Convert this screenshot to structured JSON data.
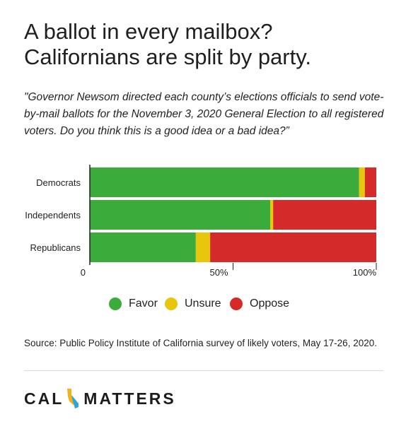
{
  "title": {
    "line1": "A ballot in every mailbox?",
    "line2": "Californians are split by party."
  },
  "question": "\"Governor Newsom directed each county’s elections officials to send vote-by-mail ballots for the November 3, 2020 General Election to all registered voters. Do you think this is a good idea or a bad idea?”",
  "chart_data": {
    "type": "bar",
    "orientation": "horizontal",
    "stacked": true,
    "categories": [
      "Democrats",
      "Independents",
      "Republicans"
    ],
    "series": [
      {
        "name": "Favor",
        "color": "#3bab3b",
        "values": [
          94,
          63,
          37
        ]
      },
      {
        "name": "Unsure",
        "color": "#e8c60c",
        "values": [
          2,
          1,
          5
        ]
      },
      {
        "name": "Oppose",
        "color": "#d52a2a",
        "values": [
          4,
          36,
          58
        ]
      }
    ],
    "xlim": [
      0,
      100
    ],
    "x_ticks": [
      "0",
      "50%",
      "100%"
    ],
    "legend_position": "bottom"
  },
  "legend": [
    {
      "label": "Favor",
      "color": "#3bab3b"
    },
    {
      "label": "Unsure",
      "color": "#e8c60c"
    },
    {
      "label": "Oppose",
      "color": "#d52a2a"
    }
  ],
  "source": "Source: Public Policy Institute of California survey of likely voters, May 17-26, 2020.",
  "logo": {
    "left": "CAL",
    "right": "MATTERS",
    "icon": "california-state-icon"
  }
}
